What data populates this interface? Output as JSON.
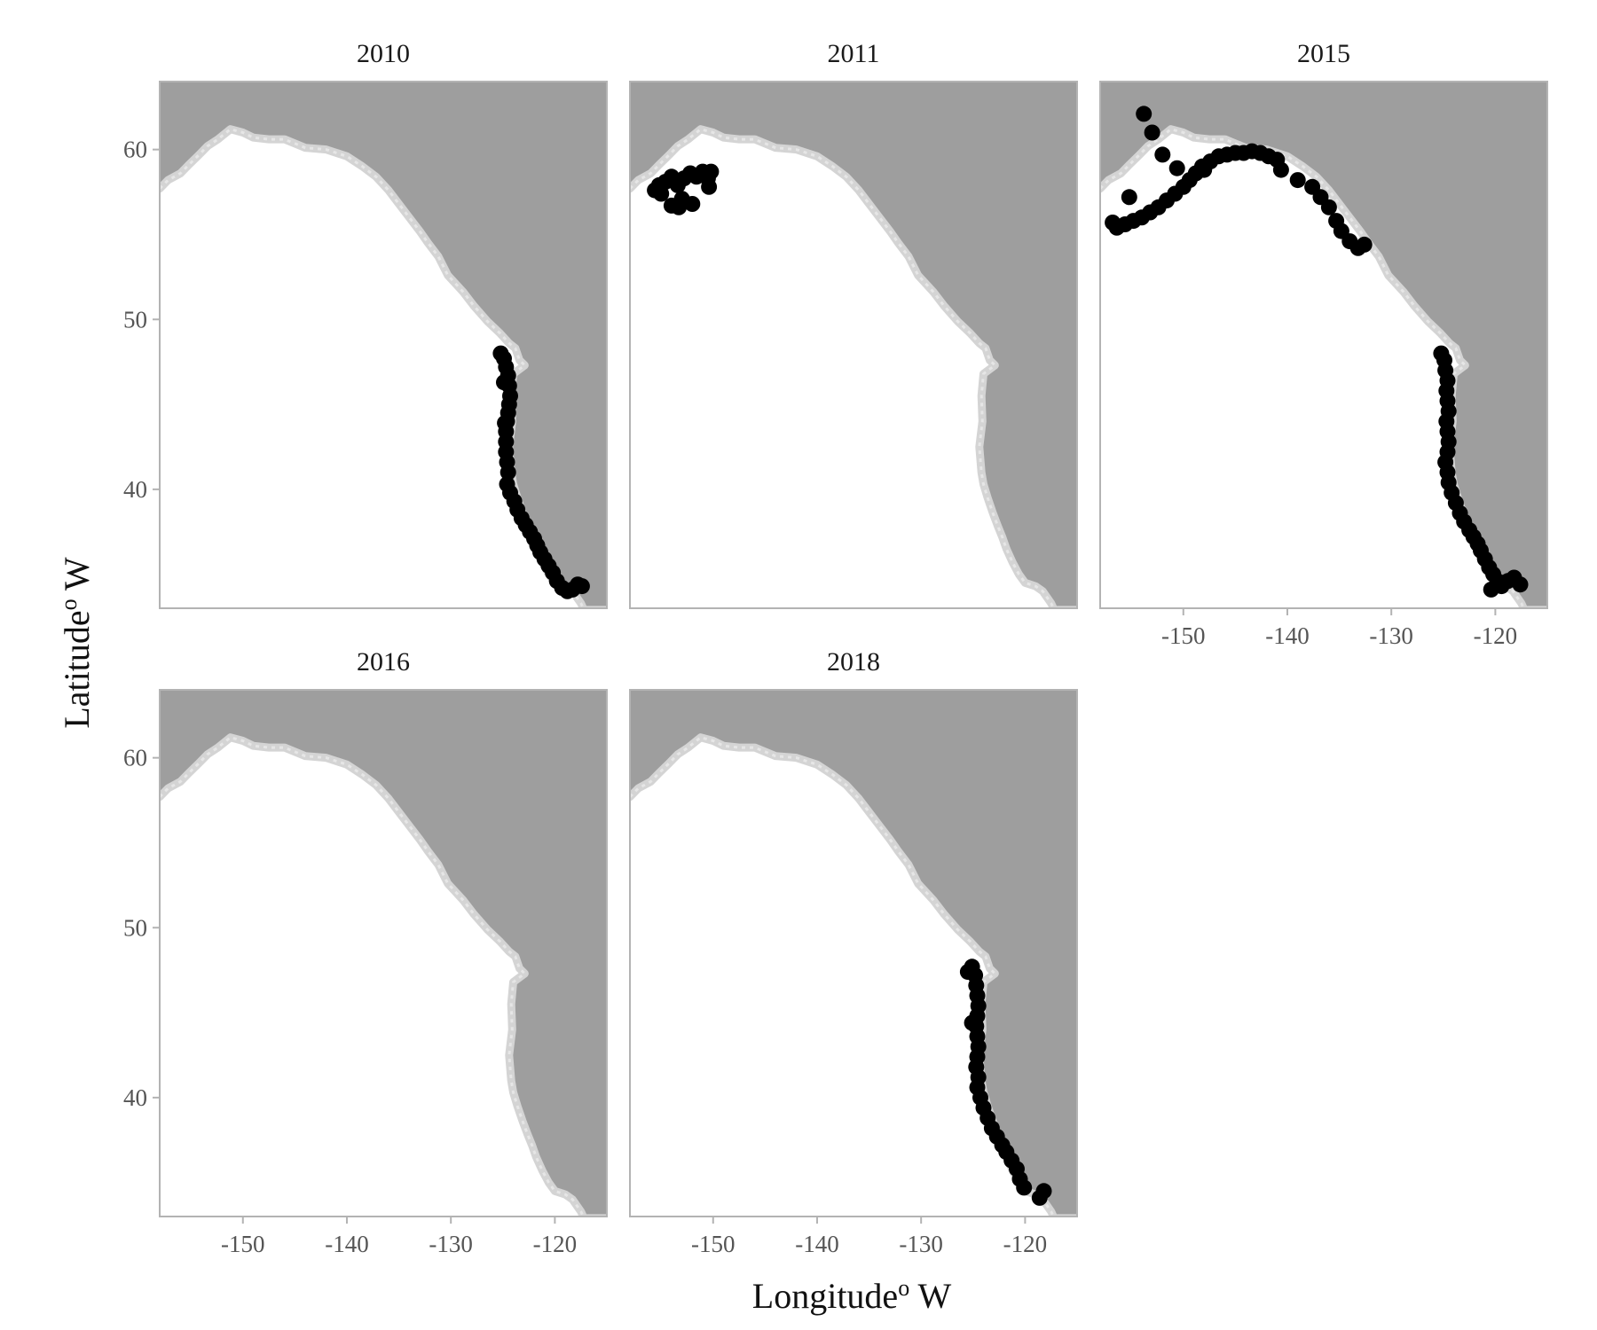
{
  "chart_data": {
    "type": "scatter",
    "xlabel": "Longitude° W",
    "xlabel_main": "Longitude",
    "xlabel_sup": "o",
    "xlabel_tail": " W",
    "ylabel_main": "Latitude",
    "ylabel_sup": "o",
    "ylabel_tail": " W",
    "xlim": [
      -158,
      -115
    ],
    "ylim": [
      33,
      64
    ],
    "xticks": [
      -150,
      -140,
      -130,
      -120
    ],
    "yticks": [
      40,
      50,
      60
    ],
    "grid": false,
    "colors": {
      "land": "#9e9e9e",
      "shelf": "#d4d4d4",
      "ocean": "#ffffff",
      "points": "#000000",
      "border": "#b3b3b3"
    },
    "coastline": [
      [
        -158,
        57.7
      ],
      [
        -157.2,
        58.2
      ],
      [
        -156.0,
        58.6
      ],
      [
        -155.2,
        59.1
      ],
      [
        -154.2,
        59.7
      ],
      [
        -153.4,
        60.2
      ],
      [
        -152.4,
        60.6
      ],
      [
        -151.2,
        61.2
      ],
      [
        -150.0,
        61.0
      ],
      [
        -149.0,
        60.7
      ],
      [
        -147.5,
        60.6
      ],
      [
        -146.0,
        60.6
      ],
      [
        -144.0,
        60.1
      ],
      [
        -142.0,
        60.0
      ],
      [
        -140.0,
        59.6
      ],
      [
        -138.5,
        59.0
      ],
      [
        -137.2,
        58.4
      ],
      [
        -136.0,
        57.6
      ],
      [
        -135.0,
        56.8
      ],
      [
        -134.0,
        56.0
      ],
      [
        -133.0,
        55.2
      ],
      [
        -132.2,
        54.5
      ],
      [
        -131.2,
        53.7
      ],
      [
        -130.3,
        52.6
      ],
      [
        -128.8,
        51.6
      ],
      [
        -127.8,
        50.8
      ],
      [
        -126.5,
        49.9
      ],
      [
        -125.3,
        49.2
      ],
      [
        -124.4,
        48.6
      ],
      [
        -123.8,
        48.3
      ],
      [
        -123.4,
        47.6
      ],
      [
        -122.9,
        47.3
      ],
      [
        -124.0,
        46.8
      ],
      [
        -124.2,
        45.5
      ],
      [
        -124.1,
        44.0
      ],
      [
        -124.4,
        42.5
      ],
      [
        -124.2,
        41.0
      ],
      [
        -124.0,
        40.3
      ],
      [
        -123.6,
        39.5
      ],
      [
        -123.1,
        38.6
      ],
      [
        -122.6,
        37.8
      ],
      [
        -122.2,
        37.2
      ],
      [
        -121.8,
        36.5
      ],
      [
        -121.2,
        35.7
      ],
      [
        -120.6,
        35.0
      ],
      [
        -120.0,
        34.5
      ],
      [
        -119.0,
        34.3
      ],
      [
        -118.3,
        34.0
      ],
      [
        -117.5,
        33.3
      ],
      [
        -117.2,
        32.9
      ],
      [
        -115,
        32.9
      ]
    ],
    "series": [
      {
        "name": "2010",
        "points": [
          [
            -125.2,
            48.0
          ],
          [
            -124.9,
            47.7
          ],
          [
            -124.7,
            47.2
          ],
          [
            -124.5,
            46.7
          ],
          [
            -124.4,
            46.1
          ],
          [
            -124.3,
            45.5
          ],
          [
            -124.4,
            45.0
          ],
          [
            -124.5,
            44.5
          ],
          [
            -124.6,
            44.0
          ],
          [
            -124.7,
            43.4
          ],
          [
            -124.7,
            42.8
          ],
          [
            -124.7,
            42.2
          ],
          [
            -124.6,
            41.6
          ],
          [
            -124.5,
            41.0
          ],
          [
            -124.6,
            40.3
          ],
          [
            -124.3,
            39.8
          ],
          [
            -123.9,
            39.3
          ],
          [
            -123.6,
            38.8
          ],
          [
            -123.2,
            38.3
          ],
          [
            -122.8,
            37.9
          ],
          [
            -122.4,
            37.5
          ],
          [
            -122.0,
            37.1
          ],
          [
            -121.7,
            36.7
          ],
          [
            -121.4,
            36.3
          ],
          [
            -121.0,
            35.9
          ],
          [
            -120.6,
            35.5
          ],
          [
            -120.2,
            35.1
          ],
          [
            -119.8,
            34.6
          ],
          [
            -119.3,
            34.2
          ],
          [
            -118.8,
            34.0
          ],
          [
            -118.3,
            34.1
          ],
          [
            -117.8,
            34.4
          ],
          [
            -117.4,
            34.3
          ],
          [
            -124.9,
            46.3
          ],
          [
            -124.8,
            43.9
          ]
        ]
      },
      {
        "name": "2011",
        "points": [
          [
            -155.6,
            57.6
          ],
          [
            -155.2,
            57.9
          ],
          [
            -154.6,
            58.1
          ],
          [
            -154.0,
            58.4
          ],
          [
            -153.4,
            57.9
          ],
          [
            -152.8,
            58.3
          ],
          [
            -152.2,
            58.6
          ],
          [
            -151.6,
            58.4
          ],
          [
            -151.0,
            58.7
          ],
          [
            -150.5,
            58.3
          ],
          [
            -150.2,
            58.7
          ],
          [
            -150.4,
            57.8
          ],
          [
            -152.0,
            56.8
          ],
          [
            -153.0,
            57.1
          ],
          [
            -154.0,
            56.7
          ],
          [
            -153.3,
            56.6
          ],
          [
            -155.0,
            57.4
          ]
        ]
      },
      {
        "name": "2015",
        "points": [
          [
            -153.8,
            62.1
          ],
          [
            -153.0,
            61.0
          ],
          [
            -152.0,
            59.7
          ],
          [
            -155.2,
            57.2
          ],
          [
            -156.8,
            55.7
          ],
          [
            -156.4,
            55.4
          ],
          [
            -155.6,
            55.6
          ],
          [
            -154.8,
            55.8
          ],
          [
            -154.0,
            56.0
          ],
          [
            -153.2,
            56.3
          ],
          [
            -152.4,
            56.6
          ],
          [
            -151.6,
            57.0
          ],
          [
            -150.8,
            57.4
          ],
          [
            -150.0,
            57.8
          ],
          [
            -149.4,
            58.2
          ],
          [
            -148.8,
            58.6
          ],
          [
            -148.2,
            59.0
          ],
          [
            -147.4,
            59.3
          ],
          [
            -146.6,
            59.6
          ],
          [
            -145.8,
            59.7
          ],
          [
            -145.0,
            59.8
          ],
          [
            -144.2,
            59.8
          ],
          [
            -143.4,
            59.9
          ],
          [
            -142.6,
            59.8
          ],
          [
            -141.8,
            59.6
          ],
          [
            -141.0,
            59.4
          ],
          [
            -140.6,
            58.8
          ],
          [
            -139.0,
            58.2
          ],
          [
            -137.6,
            57.8
          ],
          [
            -136.8,
            57.2
          ],
          [
            -136.0,
            56.6
          ],
          [
            -135.3,
            55.8
          ],
          [
            -134.8,
            55.2
          ],
          [
            -134.0,
            54.6
          ],
          [
            -133.2,
            54.2
          ],
          [
            -132.6,
            54.4
          ],
          [
            -150.6,
            58.9
          ],
          [
            -148.0,
            58.8
          ],
          [
            -125.2,
            48.0
          ],
          [
            -124.9,
            47.6
          ],
          [
            -124.8,
            47.0
          ],
          [
            -124.6,
            46.4
          ],
          [
            -124.7,
            45.8
          ],
          [
            -124.6,
            45.2
          ],
          [
            -124.5,
            44.6
          ],
          [
            -124.7,
            44.0
          ],
          [
            -124.6,
            43.4
          ],
          [
            -124.5,
            42.8
          ],
          [
            -124.6,
            42.2
          ],
          [
            -124.8,
            41.6
          ],
          [
            -124.6,
            41.0
          ],
          [
            -124.5,
            40.4
          ],
          [
            -124.2,
            39.8
          ],
          [
            -123.8,
            39.2
          ],
          [
            -123.4,
            38.6
          ],
          [
            -123.0,
            38.1
          ],
          [
            -122.5,
            37.6
          ],
          [
            -122.1,
            37.2
          ],
          [
            -121.7,
            36.8
          ],
          [
            -121.4,
            36.4
          ],
          [
            -121.0,
            35.9
          ],
          [
            -120.6,
            35.4
          ],
          [
            -120.2,
            35.0
          ],
          [
            -119.8,
            34.6
          ],
          [
            -119.4,
            34.3
          ],
          [
            -118.8,
            34.6
          ],
          [
            -118.2,
            34.8
          ],
          [
            -117.6,
            34.4
          ],
          [
            -120.4,
            34.1
          ],
          [
            -119.2,
            34.5
          ]
        ]
      },
      {
        "name": "2016",
        "points": []
      },
      {
        "name": "2018",
        "points": [
          [
            -125.5,
            47.4
          ],
          [
            -125.1,
            47.7
          ],
          [
            -124.8,
            47.2
          ],
          [
            -124.7,
            46.6
          ],
          [
            -124.6,
            46.0
          ],
          [
            -124.5,
            45.4
          ],
          [
            -124.6,
            44.8
          ],
          [
            -124.7,
            44.2
          ],
          [
            -124.6,
            43.6
          ],
          [
            -124.5,
            43.0
          ],
          [
            -124.6,
            42.4
          ],
          [
            -124.7,
            41.8
          ],
          [
            -124.5,
            41.2
          ],
          [
            -124.6,
            40.6
          ],
          [
            -124.3,
            40.0
          ],
          [
            -124.0,
            39.4
          ],
          [
            -123.6,
            38.8
          ],
          [
            -123.2,
            38.2
          ],
          [
            -122.7,
            37.7
          ],
          [
            -122.2,
            37.2
          ],
          [
            -121.8,
            36.8
          ],
          [
            -121.3,
            36.3
          ],
          [
            -120.8,
            35.8
          ],
          [
            -120.5,
            35.2
          ],
          [
            -120.1,
            34.7
          ],
          [
            -118.6,
            34.1
          ],
          [
            -118.2,
            34.5
          ],
          [
            -125.1,
            44.4
          ]
        ]
      }
    ]
  }
}
